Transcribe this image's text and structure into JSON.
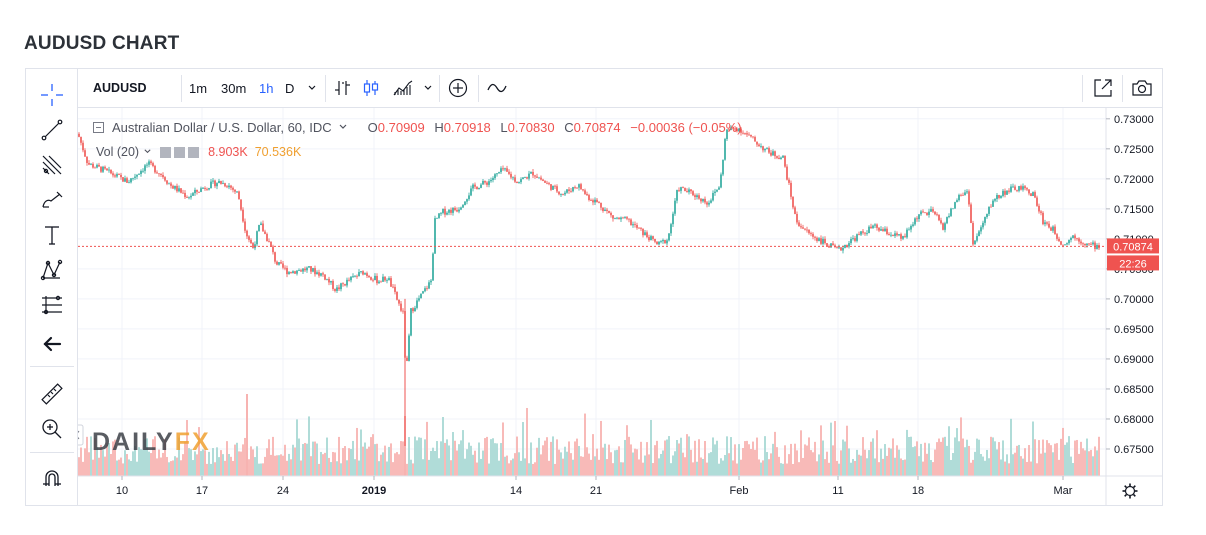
{
  "page_title": "AUDUSD CHART",
  "toolbar": {
    "symbol": "AUDUSD",
    "intervals": [
      "1m",
      "30m",
      "1h",
      "D"
    ],
    "active_interval": "1h"
  },
  "legend": {
    "title": "Australian Dollar / U.S. Dollar, 60, IDC",
    "ohlc": [
      {
        "key": "O",
        "value": "0.70909"
      },
      {
        "key": "H",
        "value": "0.70918"
      },
      {
        "key": "L",
        "value": "0.70830"
      },
      {
        "key": "C",
        "value": "0.70874"
      }
    ],
    "change": "−0.00036 (−0.05%)",
    "volume_label": "Vol (20)",
    "volume_value": "8.903K",
    "volume_ma": "70.536K"
  },
  "price_axis": {
    "last_price_label": "0.70874",
    "countdown_label": "22:26"
  },
  "watermark": {
    "part1": "DAILY",
    "part2": "FX"
  },
  "colors": {
    "up": "#26a69a",
    "down": "#ef5350",
    "accent": "#2962ff",
    "vol_up": "#a8d8d4",
    "vol_down": "#f7b3b1",
    "watermark_orange": "#f0a030"
  },
  "chart_data": {
    "type": "candlestick",
    "title": "Australian Dollar / U.S. Dollar, 60, IDC",
    "interval": "60",
    "ylim": [
      0.6705,
      0.7318
    ],
    "y_ticks": [
      "0.73000",
      "0.72500",
      "0.72000",
      "0.71500",
      "0.71000",
      "0.70500",
      "0.70000",
      "0.69500",
      "0.69000",
      "0.68500",
      "0.68000",
      "0.67500"
    ],
    "x_ticks": [
      "10",
      "17",
      "24",
      "2019",
      "14",
      "21",
      "Feb",
      "11",
      "18",
      "Mar"
    ],
    "last_price": 0.70874,
    "price_path": [
      [
        0,
        0.7275
      ],
      [
        10,
        0.7225
      ],
      [
        25,
        0.7215
      ],
      [
        50,
        0.7195
      ],
      [
        70,
        0.7225
      ],
      [
        85,
        0.7205
      ],
      [
        92,
        0.719
      ],
      [
        110,
        0.717
      ],
      [
        125,
        0.7185
      ],
      [
        140,
        0.7195
      ],
      [
        150,
        0.719
      ],
      [
        160,
        0.7175
      ],
      [
        168,
        0.711
      ],
      [
        175,
        0.7085
      ],
      [
        182,
        0.7125
      ],
      [
        192,
        0.709
      ],
      [
        198,
        0.706
      ],
      [
        210,
        0.7045
      ],
      [
        230,
        0.705
      ],
      [
        245,
        0.704
      ],
      [
        258,
        0.7015
      ],
      [
        270,
        0.703
      ],
      [
        285,
        0.7045
      ],
      [
        300,
        0.703
      ],
      [
        310,
        0.7035
      ],
      [
        320,
        0.6995
      ],
      [
        325,
        0.6975
      ],
      [
        328,
        0.687
      ],
      [
        333,
        0.698
      ],
      [
        345,
        0.701
      ],
      [
        353,
        0.703
      ],
      [
        357,
        0.713
      ],
      [
        365,
        0.7145
      ],
      [
        380,
        0.715
      ],
      [
        395,
        0.7185
      ],
      [
        410,
        0.7195
      ],
      [
        425,
        0.7215
      ],
      [
        440,
        0.7195
      ],
      [
        455,
        0.721
      ],
      [
        470,
        0.719
      ],
      [
        485,
        0.7175
      ],
      [
        500,
        0.719
      ],
      [
        510,
        0.717
      ],
      [
        520,
        0.716
      ],
      [
        535,
        0.7135
      ],
      [
        550,
        0.713
      ],
      [
        565,
        0.711
      ],
      [
        580,
        0.709
      ],
      [
        590,
        0.71
      ],
      [
        600,
        0.7185
      ],
      [
        615,
        0.7175
      ],
      [
        630,
        0.716
      ],
      [
        642,
        0.719
      ],
      [
        648,
        0.728
      ],
      [
        660,
        0.7285
      ],
      [
        675,
        0.7265
      ],
      [
        690,
        0.7245
      ],
      [
        705,
        0.7235
      ],
      [
        712,
        0.718
      ],
      [
        718,
        0.713
      ],
      [
        730,
        0.711
      ],
      [
        745,
        0.7095
      ],
      [
        760,
        0.708
      ],
      [
        775,
        0.71
      ],
      [
        795,
        0.712
      ],
      [
        810,
        0.711
      ],
      [
        825,
        0.71
      ],
      [
        840,
        0.714
      ],
      [
        855,
        0.7145
      ],
      [
        865,
        0.712
      ],
      [
        880,
        0.717
      ],
      [
        890,
        0.718
      ],
      [
        895,
        0.709
      ],
      [
        905,
        0.7125
      ],
      [
        915,
        0.7165
      ],
      [
        928,
        0.718
      ],
      [
        942,
        0.7185
      ],
      [
        955,
        0.7175
      ],
      [
        965,
        0.713
      ],
      [
        975,
        0.7115
      ],
      [
        985,
        0.709
      ],
      [
        995,
        0.7105
      ],
      [
        1010,
        0.709
      ],
      [
        1021,
        0.70874
      ]
    ]
  }
}
